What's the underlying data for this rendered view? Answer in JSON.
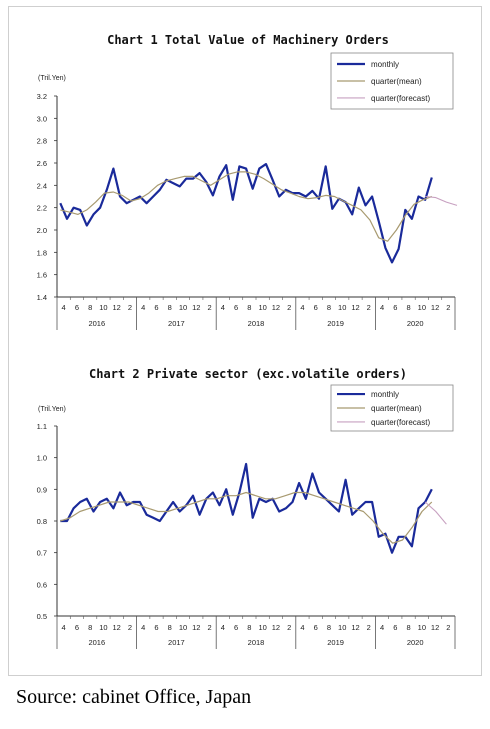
{
  "source": "Source: cabinet Office, Japan",
  "colors": {
    "monthly": "#1a2a9a",
    "quarter_mean": "#a89a70",
    "quarter_forecast": "#c7a0c0"
  },
  "chart_data": [
    {
      "type": "line",
      "title": "Chart 1 Total Value of Machinery Orders",
      "ylabel": "(Tril.Yen)",
      "ylim": [
        1.4,
        3.2
      ],
      "yticks": [
        "1.4",
        "1.6",
        "1.8",
        "2.0",
        "2.2",
        "2.4",
        "2.6",
        "2.8",
        "3.0",
        "3.2"
      ],
      "xtick_labels": [
        "4",
        "6",
        "8",
        "10",
        "12",
        "2",
        "4",
        "6",
        "8",
        "10",
        "12",
        "2",
        "4",
        "6",
        "8",
        "10",
        "12",
        "2",
        "4",
        "6",
        "8",
        "10",
        "12",
        "2",
        "4",
        "6",
        "8",
        "10",
        "12",
        "2"
      ],
      "years": [
        "2016",
        "2017",
        "2018",
        "2019",
        "2020"
      ],
      "legend": [
        "monthly",
        "quarter(mean)",
        "quarter(forecast)"
      ],
      "legend_position": "top-right",
      "grid": false,
      "series": [
        {
          "name": "monthly",
          "values": [
            2.24,
            2.1,
            2.2,
            2.18,
            2.04,
            2.14,
            2.2,
            2.36,
            2.55,
            2.3,
            2.24,
            2.27,
            2.3,
            2.24,
            2.3,
            2.36,
            2.45,
            2.42,
            2.39,
            2.46,
            2.46,
            2.51,
            2.43,
            2.31,
            2.48,
            2.58,
            2.27,
            2.57,
            2.55,
            2.37,
            2.55,
            2.59,
            2.45,
            2.3,
            2.36,
            2.33,
            2.33,
            2.3,
            2.35,
            2.28,
            2.57,
            2.19,
            2.28,
            2.25,
            2.14,
            2.38,
            2.22,
            2.3,
            2.08,
            1.84,
            1.71,
            1.83,
            2.18,
            2.1,
            2.3,
            2.27,
            2.47
          ]
        },
        {
          "name": "quarter(mean)",
          "values": [
            2.18,
            2.16,
            2.14,
            2.18,
            2.25,
            2.33,
            2.34,
            2.31,
            2.26,
            2.28,
            2.33,
            2.4,
            2.44,
            2.46,
            2.48,
            2.48,
            2.44,
            2.4,
            2.45,
            2.5,
            2.52,
            2.52,
            2.5,
            2.46,
            2.41,
            2.36,
            2.33,
            2.3,
            2.28,
            2.29,
            2.31,
            2.3,
            2.26,
            2.22,
            2.18,
            2.09,
            1.93,
            1.9,
            2.0,
            2.13,
            2.23,
            2.27,
            2.3
          ]
        },
        {
          "name": "quarter(forecast)",
          "values": [
            2.3,
            2.29,
            2.25,
            2.22
          ]
        }
      ]
    },
    {
      "type": "line",
      "title": "Chart 2 Private sector (exc.volatile orders)",
      "ylabel": "(Tril.Yen)",
      "ylim": [
        0.5,
        1.1
      ],
      "yticks": [
        "0.5",
        "0.6",
        "0.7",
        "0.8",
        "0.9",
        "1.0",
        "1.1"
      ],
      "xtick_labels": [
        "4",
        "6",
        "8",
        "10",
        "12",
        "2",
        "4",
        "6",
        "8",
        "10",
        "12",
        "2",
        "4",
        "6",
        "8",
        "10",
        "12",
        "2",
        "4",
        "6",
        "8",
        "10",
        "12",
        "2",
        "4",
        "6",
        "8",
        "10",
        "12",
        "2"
      ],
      "years": [
        "2016",
        "2017",
        "2018",
        "2019",
        "2020"
      ],
      "legend": [
        "monthly",
        "quarter(mean)",
        "quarter(forecast)"
      ],
      "legend_position": "top-right",
      "grid": false,
      "series": [
        {
          "name": "monthly",
          "values": [
            0.8,
            0.8,
            0.84,
            0.86,
            0.87,
            0.83,
            0.86,
            0.87,
            0.84,
            0.89,
            0.85,
            0.86,
            0.86,
            0.82,
            0.81,
            0.8,
            0.83,
            0.86,
            0.83,
            0.85,
            0.88,
            0.82,
            0.87,
            0.89,
            0.85,
            0.9,
            0.82,
            0.89,
            0.98,
            0.81,
            0.87,
            0.86,
            0.87,
            0.83,
            0.84,
            0.86,
            0.92,
            0.87,
            0.95,
            0.89,
            0.87,
            0.85,
            0.83,
            0.93,
            0.82,
            0.84,
            0.86,
            0.86,
            0.75,
            0.76,
            0.7,
            0.75,
            0.75,
            0.72,
            0.84,
            0.86,
            0.9
          ]
        },
        {
          "name": "quarter(mean)",
          "values": [
            0.8,
            0.81,
            0.83,
            0.84,
            0.85,
            0.86,
            0.86,
            0.86,
            0.85,
            0.84,
            0.83,
            0.83,
            0.84,
            0.85,
            0.86,
            0.87,
            0.87,
            0.88,
            0.88,
            0.89,
            0.88,
            0.87,
            0.87,
            0.88,
            0.89,
            0.89,
            0.88,
            0.87,
            0.86,
            0.85,
            0.84,
            0.83,
            0.8,
            0.76,
            0.73,
            0.74,
            0.78,
            0.83,
            0.86
          ]
        },
        {
          "name": "quarter(forecast)",
          "values": [
            0.86,
            0.83,
            0.79
          ]
        }
      ]
    }
  ]
}
